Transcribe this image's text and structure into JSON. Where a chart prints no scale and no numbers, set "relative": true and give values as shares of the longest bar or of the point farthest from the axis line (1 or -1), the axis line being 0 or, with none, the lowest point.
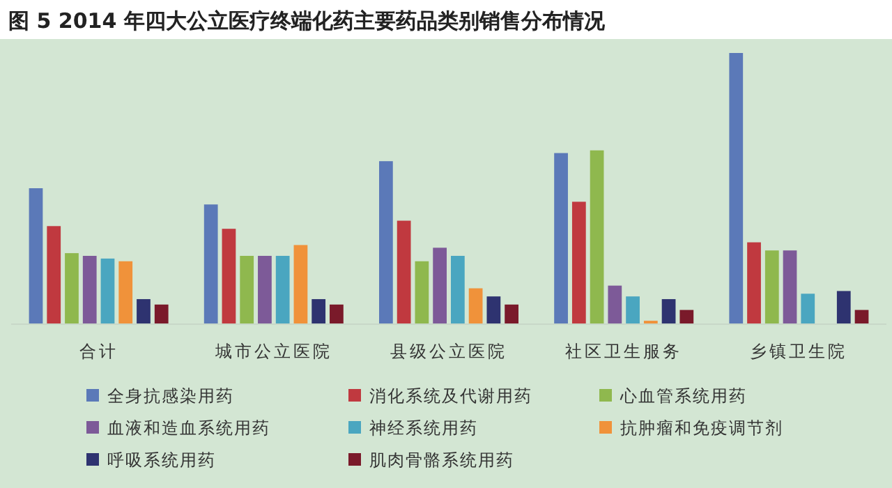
{
  "chart_data": {
    "type": "bar",
    "title": "图 5  2014 年四大公立医疗终端化药主要药品类别销售分布情况",
    "relative": true,
    "legend": "bottom",
    "categories": [
      "合计",
      "城市公立医院",
      "县级公立医院",
      "社区卫生服务",
      "乡镇卫生院"
    ],
    "series": [
      {
        "name": "全身抗感染用药",
        "color": "#5b79b8",
        "values": [
          0.5,
          0.44,
          0.6,
          0.63,
          1
        ]
      },
      {
        "name": "消化系统及代谢用药",
        "color": "#c0393f",
        "values": [
          0.36,
          0.35,
          0.38,
          0.45,
          0.3
        ]
      },
      {
        "name": "心血管系统用药",
        "color": "#8fb84e",
        "values": [
          0.26,
          0.25,
          0.23,
          0.64,
          0.27
        ]
      },
      {
        "name": "血液和造血系统用药",
        "color": "#7d5a98",
        "values": [
          0.25,
          0.25,
          0.28,
          0.14,
          0.27
        ]
      },
      {
        "name": "神经系统用药",
        "color": "#4aa6c0",
        "values": [
          0.24,
          0.25,
          0.25,
          0.1,
          0.11
        ]
      },
      {
        "name": "抗肿瘤和免疫调节剂",
        "color": "#f0923a",
        "values": [
          0.23,
          0.29,
          0.13,
          0.01,
          null
        ]
      },
      {
        "name": "呼吸系统用药",
        "color": "#2e3370",
        "values": [
          0.09,
          0.09,
          0.1,
          0.09,
          0.12
        ]
      },
      {
        "name": "肌肉骨骼系统用药",
        "color": "#7a1a2a",
        "values": [
          0.07,
          0.07,
          0.07,
          0.05,
          0.05
        ]
      }
    ]
  }
}
